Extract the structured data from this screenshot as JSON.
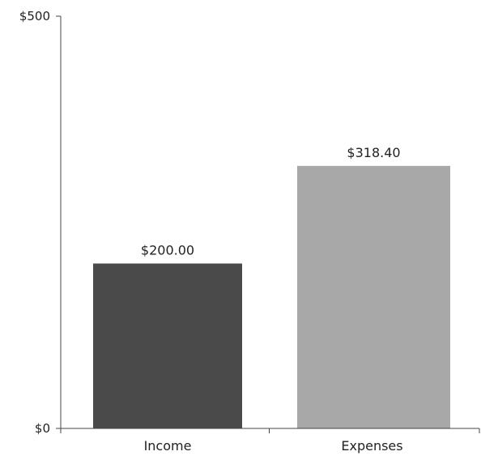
{
  "chart_data": {
    "type": "bar",
    "categories": [
      "Income",
      "Expenses"
    ],
    "values": [
      200.0,
      318.4
    ],
    "data_labels": [
      "$200.00",
      "$318.40"
    ],
    "bar_colors": [
      "#4a4a4a",
      "#a8a8a8"
    ],
    "title": "",
    "xlabel": "",
    "ylabel": "",
    "ylim": [
      0,
      500
    ],
    "y_ticks": [
      0,
      500
    ],
    "y_tick_labels": [
      "$0",
      "$500"
    ],
    "grid": false,
    "legend": "none"
  }
}
